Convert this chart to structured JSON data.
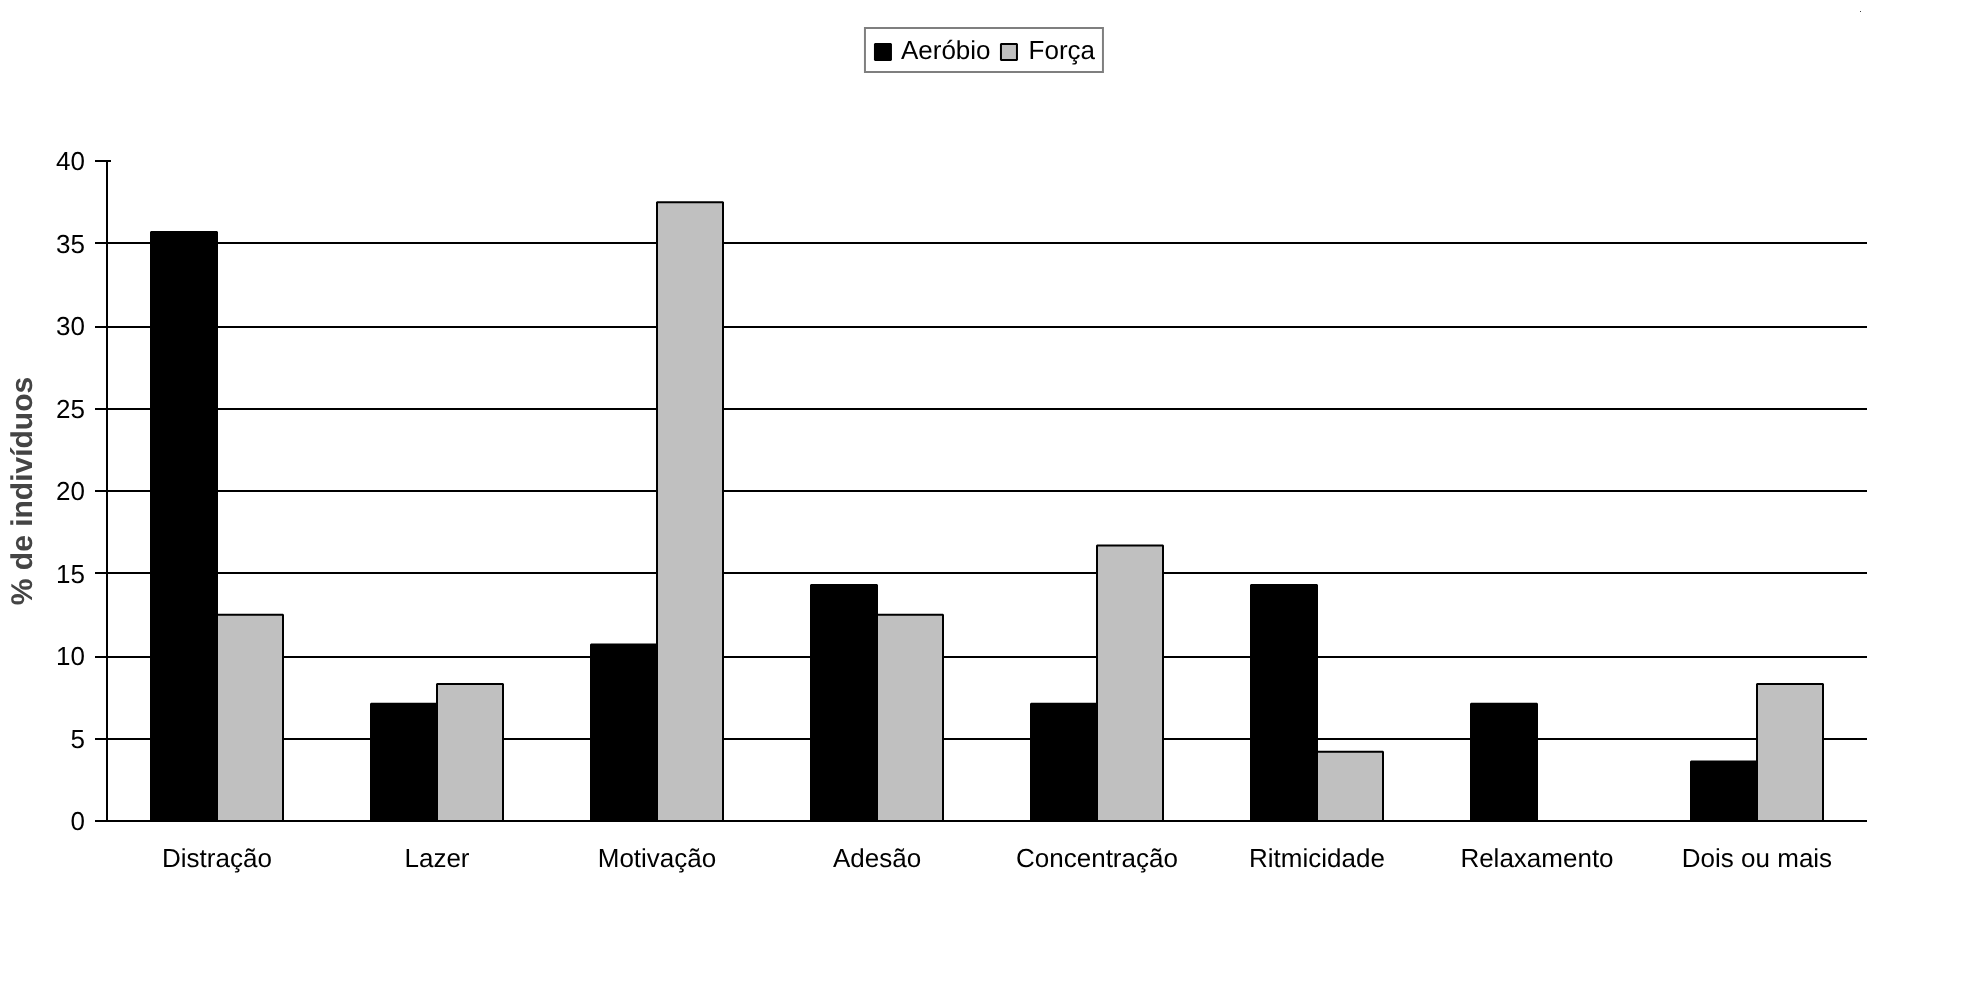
{
  "chart_data": {
    "type": "bar",
    "ylabel": "% de indivíduos",
    "categories": [
      "Distração",
      "Lazer",
      "Motivação",
      "Adesão",
      "Concentração",
      "Ritmicidade",
      "Relaxamento",
      "Dois ou mais"
    ],
    "series": [
      {
        "name": "Aeróbio",
        "color": "#000000",
        "values": [
          35.7,
          7.1,
          10.7,
          14.3,
          7.1,
          14.3,
          7.1,
          3.6
        ]
      },
      {
        "name": "Força",
        "color": "#c0c0c0",
        "values": [
          12.5,
          8.3,
          37.5,
          12.5,
          16.7,
          4.2,
          0,
          8.3
        ]
      }
    ],
    "ylim": [
      0,
      40
    ],
    "yticks": [
      0,
      5,
      10,
      15,
      20,
      25,
      30,
      35,
      40
    ],
    "grid": "y",
    "legend": "top"
  }
}
